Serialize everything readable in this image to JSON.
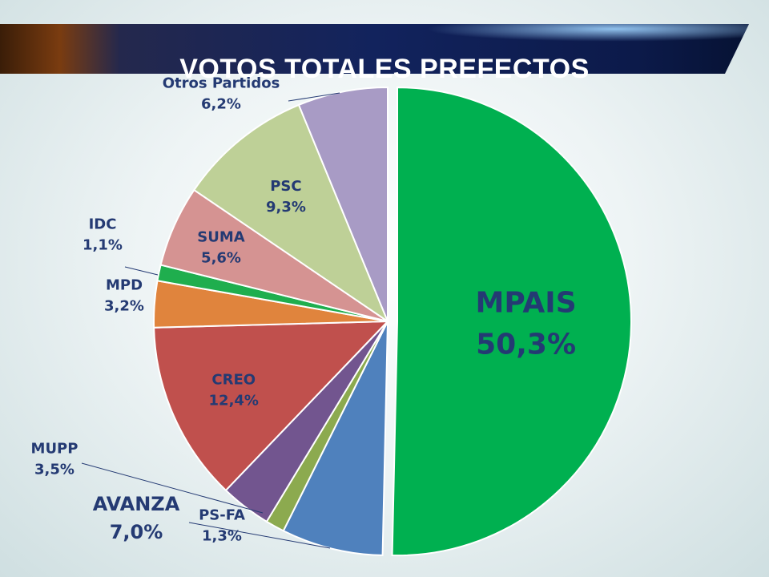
{
  "title": "VOTOS TOTALES PREFECTOS",
  "chart_data": {
    "type": "pie",
    "title": "VOTOS TOTALES PREFECTOS",
    "start_angle_deg": 0,
    "direction": "clockwise",
    "slices": [
      {
        "label": "MPAIS",
        "value": 50.3,
        "display": "50,3%",
        "color": "#00b050",
        "explode": true
      },
      {
        "label": "AVANZA",
        "value": 7.0,
        "display": "7,0%",
        "color": "#4f81bd"
      },
      {
        "label": "PS-FA",
        "value": 1.3,
        "display": "1,3%",
        "color": "#8caa4f"
      },
      {
        "label": "MUPP",
        "value": 3.5,
        "display": "3,5%",
        "color": "#72558f"
      },
      {
        "label": "CREO",
        "value": 12.4,
        "display": "12,4%",
        "color": "#c0504d"
      },
      {
        "label": "MPD",
        "value": 3.2,
        "display": "3,2%",
        "color": "#e0843d"
      },
      {
        "label": "IDC",
        "value": 1.1,
        "display": "1,1%",
        "color": "#1fae4e"
      },
      {
        "label": "SUMA",
        "value": 5.6,
        "display": "5,6%",
        "color": "#d59392"
      },
      {
        "label": "PSC",
        "value": 9.3,
        "display": "9,3%",
        "color": "#bed097"
      },
      {
        "label": "Otros Partidos",
        "value": 6.2,
        "display": "6,2%",
        "color": "#a89bc5"
      }
    ],
    "label_color": "#243a73",
    "leader_line_color": "#243a73"
  }
}
